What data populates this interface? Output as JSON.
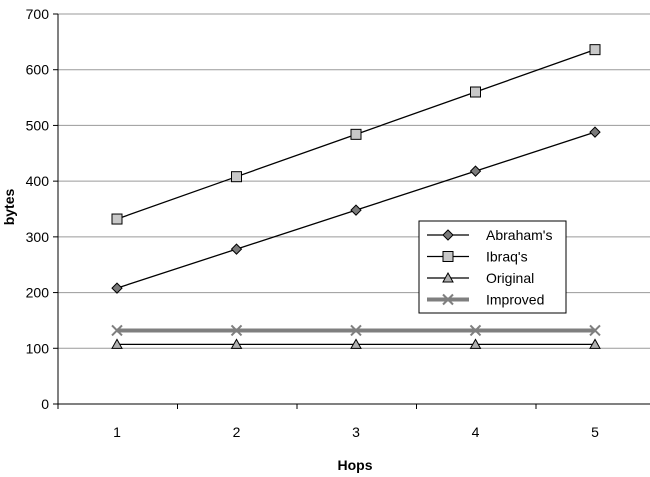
{
  "chart_data": {
    "type": "line",
    "x": [
      1,
      2,
      3,
      4,
      5
    ],
    "xlabel": "Hops",
    "ylabel": "bytes",
    "ylim": [
      0,
      700
    ],
    "yticks": [
      0,
      100,
      200,
      300,
      400,
      500,
      600,
      700
    ],
    "grid": "horizontal",
    "legend": "right-middle",
    "series": [
      {
        "name": "Abraham's",
        "values": [
          208,
          278,
          348,
          418,
          488
        ],
        "marker": "diamond",
        "color": "#000000"
      },
      {
        "name": "Ibraq's",
        "values": [
          332,
          408,
          484,
          560,
          636
        ],
        "marker": "square",
        "color": "#000000"
      },
      {
        "name": "Original",
        "values": [
          107,
          107,
          107,
          107,
          107
        ],
        "marker": "triangle",
        "color": "#000000"
      },
      {
        "name": "Improved",
        "values": [
          132,
          132,
          132,
          132,
          132
        ],
        "marker": "x",
        "color": "#7f7f7f"
      }
    ]
  }
}
